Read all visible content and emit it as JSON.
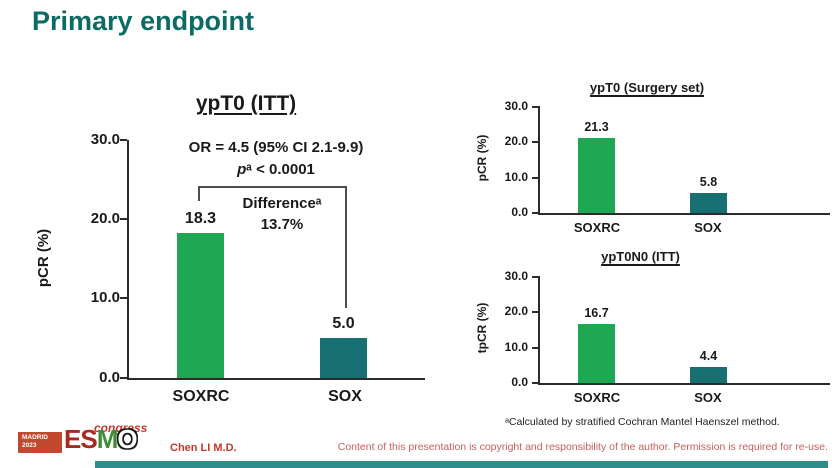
{
  "slide": {
    "title": "Primary endpoint",
    "presenter": "Chen LI M.D.",
    "copyright": "Content of this presentation is copyright and responsibility of the author. Permission is required for re-use.",
    "footnote": "ᵃCalculated by stratified Cochran Mantel Haenszel method."
  },
  "logo": {
    "location": "MADRID",
    "year": "2023",
    "letter_e": "E",
    "letter_s": "S",
    "letter_m": "M",
    "letter_o": "O",
    "event": "congress"
  },
  "colors": {
    "title_teal": "#0c6b64",
    "bar_green": "#1ea854",
    "bar_teal": "#186f72",
    "footer_bar": "#2f8d8b"
  },
  "chart_data": [
    {
      "id": "ypt0-itt",
      "type": "bar",
      "title": "ypT0 (ITT)",
      "ylabel": "pCR (%)",
      "categories": [
        "SOXRC",
        "SOX"
      ],
      "values": [
        18.3,
        5.0
      ],
      "value_labels": [
        "18.3",
        "5.0"
      ],
      "ylim": [
        0,
        30
      ],
      "yticks": [
        "30.0",
        "20.0",
        "10.0",
        "0.0"
      ],
      "grid": false,
      "annotations": {
        "or_line": "OR = 4.5 (95% CI 2.1-9.9)",
        "p_italic": "p",
        "p_rest": "ᵃ < 0.0001",
        "difference_label": "Differenceᵃ",
        "difference_value": "13.7%"
      }
    },
    {
      "id": "ypt0-surgery-set",
      "type": "bar",
      "title": "ypT0 (Surgery set)",
      "ylabel": "pCR (%)",
      "categories": [
        "SOXRC",
        "SOX"
      ],
      "values": [
        21.3,
        5.8
      ],
      "value_labels": [
        "21.3",
        "5.8"
      ],
      "ylim": [
        0,
        30
      ],
      "yticks": [
        "30.0",
        "20.0",
        "10.0",
        "0.0"
      ],
      "grid": false
    },
    {
      "id": "ypt0n0-itt",
      "type": "bar",
      "title": "ypT0N0 (ITT)",
      "ylabel": "tpCR (%)",
      "categories": [
        "SOXRC",
        "SOX"
      ],
      "values": [
        16.7,
        4.4
      ],
      "value_labels": [
        "16.7",
        "4.4"
      ],
      "ylim": [
        0,
        30
      ],
      "yticks": [
        "30.0",
        "20.0",
        "10.0",
        "0.0"
      ],
      "grid": false
    }
  ]
}
